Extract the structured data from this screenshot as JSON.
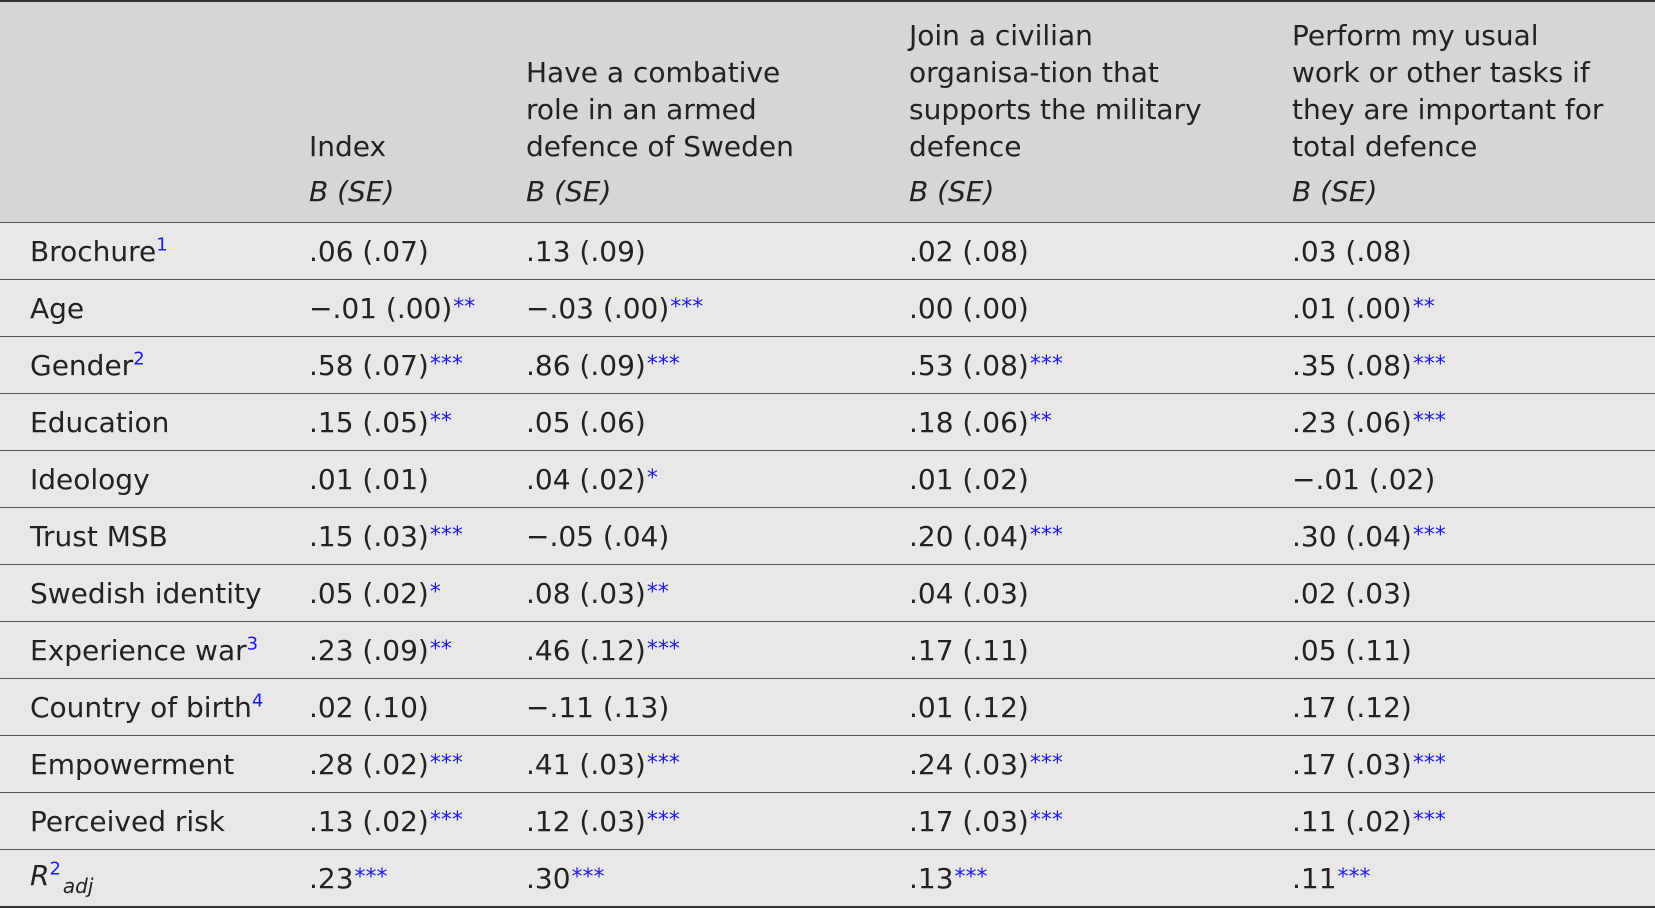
{
  "columns": [
    {
      "title": "",
      "sub": ""
    },
    {
      "title": "Index",
      "sub": "B (SE)"
    },
    {
      "title": "Have a combative role in an armed defence of Sweden",
      "sub": "B (SE)"
    },
    {
      "title": "Join a civilian organisa-tion that supports the military defence",
      "sub": "B (SE)"
    },
    {
      "title": "Perform my usual work or other tasks if they are important for total defence",
      "sub": "B (SE)"
    }
  ],
  "rows": [
    {
      "label": "Brochure",
      "note": "1",
      "cells": [
        {
          "v": ".06 (.07)",
          "s": ""
        },
        {
          "v": ".13 (.09)",
          "s": ""
        },
        {
          "v": ".02 (.08)",
          "s": ""
        },
        {
          "v": ".03 (.08)",
          "s": ""
        }
      ]
    },
    {
      "label": "Age",
      "note": "",
      "cells": [
        {
          "v": "−.01 (.00)",
          "s": "**"
        },
        {
          "v": "−.03 (.00)",
          "s": "***"
        },
        {
          "v": ".00 (.00)",
          "s": ""
        },
        {
          "v": ".01 (.00)",
          "s": "**"
        }
      ]
    },
    {
      "label": "Gender",
      "note": "2",
      "cells": [
        {
          "v": ".58 (.07)",
          "s": "***"
        },
        {
          "v": ".86 (.09)",
          "s": "***"
        },
        {
          "v": ".53 (.08)",
          "s": "***"
        },
        {
          "v": ".35 (.08)",
          "s": "***"
        }
      ]
    },
    {
      "label": "Education",
      "note": "",
      "cells": [
        {
          "v": ".15 (.05)",
          "s": "**"
        },
        {
          "v": ".05 (.06)",
          "s": ""
        },
        {
          "v": ".18 (.06)",
          "s": "**"
        },
        {
          "v": ".23 (.06)",
          "s": "***"
        }
      ]
    },
    {
      "label": "Ideology",
      "note": "",
      "cells": [
        {
          "v": ".01 (.01)",
          "s": ""
        },
        {
          "v": ".04 (.02)",
          "s": "*"
        },
        {
          "v": ".01 (.02)",
          "s": ""
        },
        {
          "v": "−.01 (.02)",
          "s": ""
        }
      ]
    },
    {
      "label": "Trust MSB",
      "note": "",
      "cells": [
        {
          "v": ".15 (.03)",
          "s": "***"
        },
        {
          "v": "−.05 (.04)",
          "s": ""
        },
        {
          "v": ".20 (.04)",
          "s": "***"
        },
        {
          "v": ".30 (.04)",
          "s": "***"
        }
      ]
    },
    {
      "label": "Swedish identity",
      "note": "",
      "cells": [
        {
          "v": ".05 (.02)",
          "s": "*"
        },
        {
          "v": ".08 (.03)",
          "s": "**"
        },
        {
          "v": ".04 (.03)",
          "s": ""
        },
        {
          "v": ".02 (.03)",
          "s": ""
        }
      ]
    },
    {
      "label": "Experience war",
      "note": "3",
      "cells": [
        {
          "v": ".23 (.09)",
          "s": "**"
        },
        {
          "v": ".46 (.12)",
          "s": "***"
        },
        {
          "v": ".17 (.11)",
          "s": ""
        },
        {
          "v": ".05 (.11)",
          "s": ""
        }
      ]
    },
    {
      "label": "Country of birth",
      "note": "4",
      "cells": [
        {
          "v": ".02 (.10)",
          "s": ""
        },
        {
          "v": "−.11 (.13)",
          "s": ""
        },
        {
          "v": ".01 (.12)",
          "s": ""
        },
        {
          "v": ".17 (.12)",
          "s": ""
        }
      ]
    },
    {
      "label": "Empowerment",
      "note": "",
      "cells": [
        {
          "v": ".28 (.02)",
          "s": "***"
        },
        {
          "v": ".41 (.03)",
          "s": "***"
        },
        {
          "v": ".24 (.03)",
          "s": "***"
        },
        {
          "v": ".17 (.03)",
          "s": "***"
        }
      ]
    },
    {
      "label": "Perceived risk",
      "note": "",
      "cells": [
        {
          "v": ".13 (.02)",
          "s": "***"
        },
        {
          "v": ".12 (.03)",
          "s": "***"
        },
        {
          "v": ".17 (.03)",
          "s": "***"
        },
        {
          "v": ".11 (.02)",
          "s": "***"
        }
      ]
    }
  ],
  "r2": {
    "label_main": "R",
    "label_sup": "2",
    "label_sub": "adj",
    "cells": [
      {
        "v": ".23",
        "s": "***"
      },
      {
        "v": ".30",
        "s": "***"
      },
      {
        "v": ".13",
        "s": "***"
      },
      {
        "v": ".11",
        "s": "***"
      }
    ]
  },
  "colors": {
    "star": "#1a1aee",
    "header_bg": "#d6d6d6",
    "row_bg": "#e8e8e8"
  }
}
